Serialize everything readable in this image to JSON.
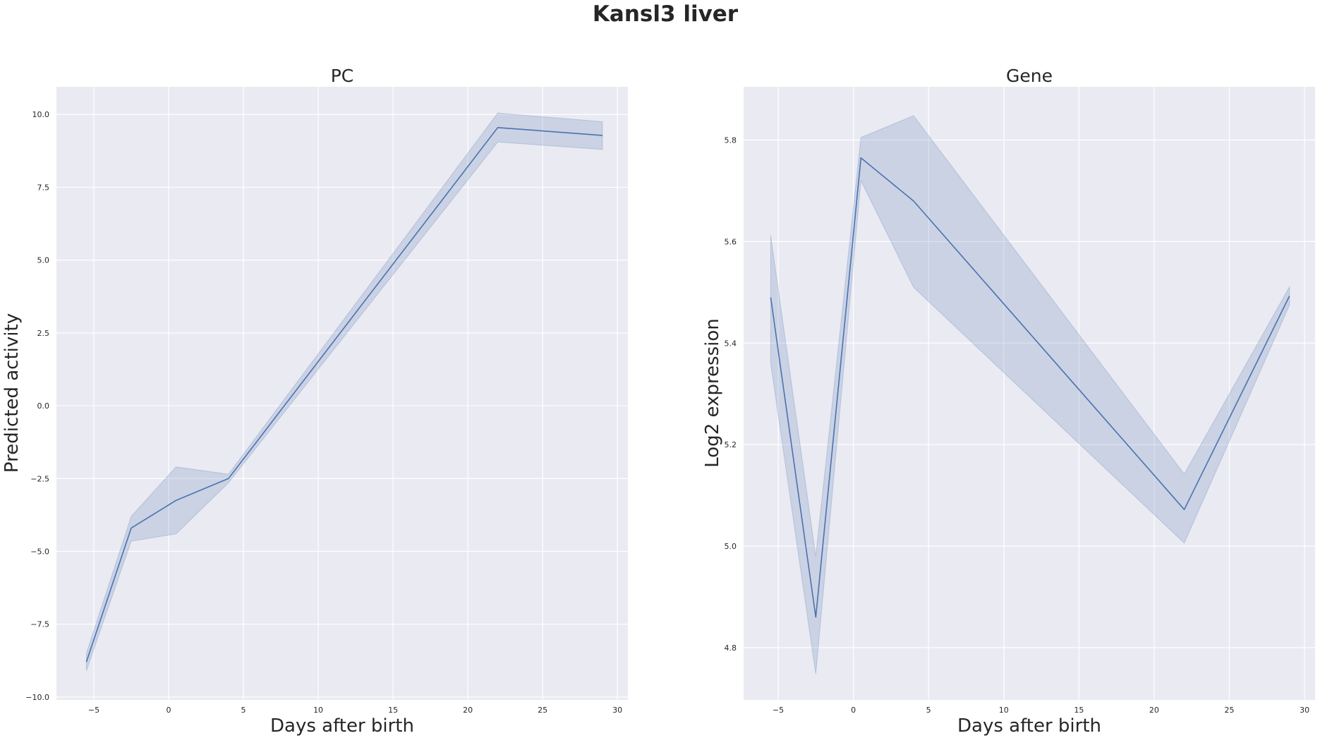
{
  "figure": {
    "title": "Kansl3 liver"
  },
  "chart_data": [
    {
      "type": "line",
      "title": "PC",
      "xlabel": "Days after birth",
      "ylabel": "Predicted activity",
      "xlim": [
        -7.5,
        30.7
      ],
      "ylim": [
        -10.1,
        10.95
      ],
      "xticks": [
        -5,
        0,
        5,
        10,
        15,
        20,
        25,
        30
      ],
      "yticks": [
        -10.0,
        -7.5,
        -5.0,
        -2.5,
        0.0,
        2.5,
        5.0,
        7.5,
        10.0
      ],
      "xtick_labels": [
        "−5",
        "0",
        "5",
        "10",
        "15",
        "20",
        "25",
        "30"
      ],
      "ytick_labels": [
        "−10.0",
        "−7.5",
        "−5.0",
        "−2.5",
        "0.0",
        "2.5",
        "5.0",
        "7.5",
        "10.0"
      ],
      "grid": true,
      "line_color": "#4c72b0",
      "band_color": "#4c72b0",
      "series": [
        {
          "x": [
            -5.5,
            -2.5,
            0.5,
            4.0,
            22.0,
            29.0
          ],
          "y": [
            -8.8,
            -4.2,
            -3.25,
            -2.5,
            9.55,
            9.28
          ],
          "ci_low": [
            -9.1,
            -4.65,
            -4.4,
            -2.65,
            9.05,
            8.8
          ],
          "ci_high": [
            -8.5,
            -3.8,
            -2.1,
            -2.35,
            10.05,
            9.75
          ]
        }
      ]
    },
    {
      "type": "line",
      "title": "Gene",
      "xlabel": "Days after birth",
      "ylabel": "Log2 expression",
      "xlim": [
        -7.3,
        30.7
      ],
      "ylim": [
        4.697,
        5.905
      ],
      "xticks": [
        -5,
        0,
        5,
        10,
        15,
        20,
        25,
        30
      ],
      "yticks": [
        4.8,
        5.0,
        5.2,
        5.4,
        5.6,
        5.8
      ],
      "xtick_labels": [
        "−5",
        "0",
        "5",
        "10",
        "15",
        "20",
        "25",
        "30"
      ],
      "ytick_labels": [
        "4.8",
        "5.0",
        "5.2",
        "5.4",
        "5.6",
        "5.8"
      ],
      "grid": true,
      "line_color": "#4c72b0",
      "band_color": "#4c72b0",
      "series": [
        {
          "x": [
            -5.5,
            -2.5,
            0.5,
            4.0,
            22.0,
            29.0
          ],
          "y": [
            5.49,
            4.86,
            5.765,
            5.68,
            5.072,
            5.493
          ],
          "ci_low": [
            5.36,
            4.748,
            5.72,
            5.51,
            5.006,
            5.475
          ],
          "ci_high": [
            5.612,
            4.98,
            5.805,
            5.848,
            5.142,
            5.511
          ]
        }
      ]
    }
  ]
}
